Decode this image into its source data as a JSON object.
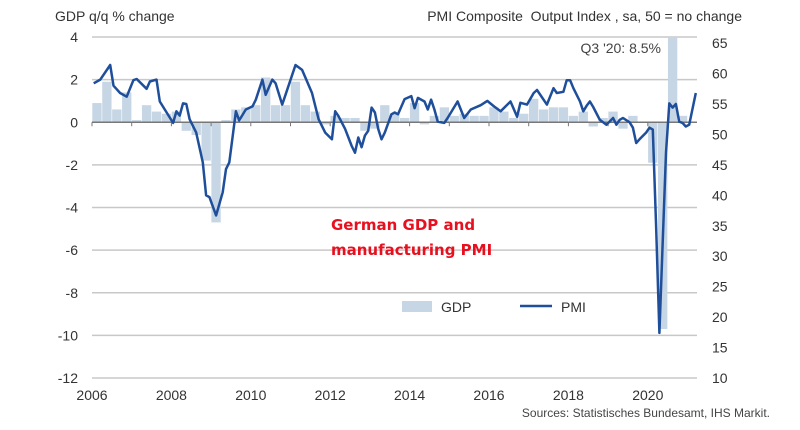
{
  "chart_data": {
    "type": "bar+line",
    "left_axis_title": "GDP q/q % change",
    "right_axis_title": "PMI Composite  Output Index , sa, 50 = no change",
    "annotation": "Q3 '20: 8.5%",
    "overlay_title_line1": "German GDP and",
    "overlay_title_line2": "manufacturing PMI",
    "source": "Sources: Statistisches Bundesamt, IHS Markit.",
    "left_ylim": [
      -12,
      4
    ],
    "left_ticks": [
      "4",
      "2",
      "0",
      "-2",
      "-4",
      "-6",
      "-8",
      "-10",
      "-12"
    ],
    "right_ylim": [
      10,
      66
    ],
    "right_ticks": [
      "65",
      "60",
      "55",
      "50",
      "45",
      "40",
      "35",
      "30",
      "25",
      "20",
      "15",
      "10"
    ],
    "x_ticks": [
      "2006",
      "2008",
      "2010",
      "2012",
      "2014",
      "2016",
      "2018",
      "2020"
    ],
    "grid": "horizontal",
    "legend_placement": "bottom-center",
    "colors": {
      "gdp": "#c6d6e5",
      "pmi": "#1f4f9a",
      "annotation": "#e8101e"
    },
    "series": [
      {
        "name": "GDP",
        "kind": "bar",
        "axis": "left",
        "frequency": "quarterly",
        "start": "2006-Q1",
        "values": [
          0.9,
          1.9,
          0.6,
          1.4,
          0.1,
          0.8,
          0.5,
          0.4,
          0.5,
          -0.4,
          -0.6,
          -1.8,
          -4.7,
          0.1,
          0.6,
          0.7,
          0.8,
          2.1,
          0.8,
          0.8,
          1.9,
          0.8,
          0.5,
          -0.1,
          0.3,
          0.2,
          0.2,
          -0.4,
          -0.3,
          0.8,
          0.4,
          0.2,
          0.9,
          -0.1,
          0.3,
          0.7,
          0.3,
          0.4,
          0.3,
          0.3,
          0.7,
          0.5,
          0.2,
          0.4,
          1.1,
          0.6,
          0.7,
          0.7,
          0.3,
          0.5,
          -0.2,
          0.2,
          0.5,
          -0.3,
          0.3,
          0.0,
          -1.9,
          -9.7,
          8.5,
          0.3
        ]
      },
      {
        "name": "PMI",
        "kind": "line",
        "axis": "right",
        "points": [
          [
            "2006-01",
            58.4
          ],
          [
            "2006-03",
            59.0
          ],
          [
            "2006-06",
            61.4
          ],
          [
            "2006-07",
            58.0
          ],
          [
            "2006-09",
            56.8
          ],
          [
            "2006-11",
            56.2
          ],
          [
            "2007-01",
            58.9
          ],
          [
            "2007-02",
            59.1
          ],
          [
            "2007-05",
            57.5
          ],
          [
            "2007-06",
            58.7
          ],
          [
            "2007-08",
            59.0
          ],
          [
            "2007-09",
            55.4
          ],
          [
            "2008-01",
            51.9
          ],
          [
            "2008-02",
            53.8
          ],
          [
            "2008-03",
            53.1
          ],
          [
            "2008-04",
            55.1
          ],
          [
            "2008-05",
            55.0
          ],
          [
            "2008-06",
            52.5
          ],
          [
            "2008-08",
            50.3
          ],
          [
            "2008-10",
            45.4
          ],
          [
            "2008-11",
            40.0
          ],
          [
            "2008-12",
            39.7
          ],
          [
            "2009-02",
            36.7
          ],
          [
            "2009-04",
            40.5
          ],
          [
            "2009-05",
            44.3
          ],
          [
            "2009-06",
            45.4
          ],
          [
            "2009-08",
            53.8
          ],
          [
            "2009-09",
            52.3
          ],
          [
            "2009-11",
            54.1
          ],
          [
            "2010-01",
            54.6
          ],
          [
            "2010-02",
            55.7
          ],
          [
            "2010-04",
            59.0
          ],
          [
            "2010-05",
            56.5
          ],
          [
            "2010-07",
            59.0
          ],
          [
            "2010-08",
            58.4
          ],
          [
            "2010-10",
            54.9
          ],
          [
            "2010-11",
            56.5
          ],
          [
            "2011-02",
            61.4
          ],
          [
            "2011-04",
            60.6
          ],
          [
            "2011-07",
            56.8
          ],
          [
            "2011-09",
            52.5
          ],
          [
            "2011-11",
            50.3
          ],
          [
            "2012-01",
            49.2
          ],
          [
            "2012-02",
            53.8
          ],
          [
            "2012-03",
            53.0
          ],
          [
            "2012-05",
            50.9
          ],
          [
            "2012-07",
            48.1
          ],
          [
            "2012-08",
            47.0
          ],
          [
            "2012-09",
            49.5
          ],
          [
            "2012-10",
            47.9
          ],
          [
            "2012-11",
            49.8
          ],
          [
            "2012-12",
            50.6
          ],
          [
            "2013-01",
            54.4
          ],
          [
            "2013-02",
            53.6
          ],
          [
            "2013-03",
            50.9
          ],
          [
            "2013-04",
            49.2
          ],
          [
            "2013-05",
            50.3
          ],
          [
            "2013-07",
            53.3
          ],
          [
            "2013-08",
            53.6
          ],
          [
            "2013-09",
            53.3
          ],
          [
            "2013-11",
            55.8
          ],
          [
            "2014-01",
            56.3
          ],
          [
            "2014-02",
            54.3
          ],
          [
            "2014-03",
            56.0
          ],
          [
            "2014-05",
            55.4
          ],
          [
            "2014-06",
            54.1
          ],
          [
            "2014-07",
            55.7
          ],
          [
            "2014-08",
            54.1
          ],
          [
            "2014-09",
            52.1
          ],
          [
            "2014-11",
            51.9
          ],
          [
            "2014-12",
            52.7
          ],
          [
            "2015-03",
            55.4
          ],
          [
            "2015-05",
            52.7
          ],
          [
            "2015-07",
            54.1
          ],
          [
            "2015-10",
            54.8
          ],
          [
            "2015-12",
            55.5
          ],
          [
            "2016-02",
            54.6
          ],
          [
            "2016-04",
            53.8
          ],
          [
            "2016-07",
            55.4
          ],
          [
            "2016-09",
            52.9
          ],
          [
            "2016-10",
            55.2
          ],
          [
            "2016-12",
            54.9
          ],
          [
            "2017-02",
            56.8
          ],
          [
            "2017-03",
            57.3
          ],
          [
            "2017-06",
            54.9
          ],
          [
            "2017-08",
            57.6
          ],
          [
            "2017-09",
            56.8
          ],
          [
            "2017-11",
            57.0
          ],
          [
            "2017-12",
            58.9
          ],
          [
            "2018-01",
            58.9
          ],
          [
            "2018-02",
            57.6
          ],
          [
            "2018-04",
            55.4
          ],
          [
            "2018-05",
            53.8
          ],
          [
            "2018-06",
            54.7
          ],
          [
            "2018-07",
            55.4
          ],
          [
            "2018-08",
            54.5
          ],
          [
            "2018-10",
            52.4
          ],
          [
            "2018-12",
            51.6
          ],
          [
            "2019-02",
            52.7
          ],
          [
            "2019-03",
            51.6
          ],
          [
            "2019-04",
            52.4
          ],
          [
            "2019-05",
            52.7
          ],
          [
            "2019-07",
            52.0
          ],
          [
            "2019-08",
            51.1
          ],
          [
            "2019-09",
            48.6
          ],
          [
            "2019-10",
            49.2
          ],
          [
            "2019-12",
            50.3
          ],
          [
            "2020-01",
            51.1
          ],
          [
            "2020-02",
            50.8
          ],
          [
            "2020-03",
            35.0
          ],
          [
            "2020-04",
            17.4
          ],
          [
            "2020-05",
            32.3
          ],
          [
            "2020-06",
            47.0
          ],
          [
            "2020-07",
            55.1
          ],
          [
            "2020-08",
            54.4
          ],
          [
            "2020-09",
            55.0
          ],
          [
            "2020-10",
            52.1
          ],
          [
            "2020-11",
            51.9
          ],
          [
            "2020-12",
            51.3
          ],
          [
            "2021-01",
            51.6
          ],
          [
            "2021-03",
            56.8
          ]
        ]
      }
    ],
    "legend": [
      {
        "label": "GDP"
      },
      {
        "label": "PMI"
      }
    ]
  }
}
